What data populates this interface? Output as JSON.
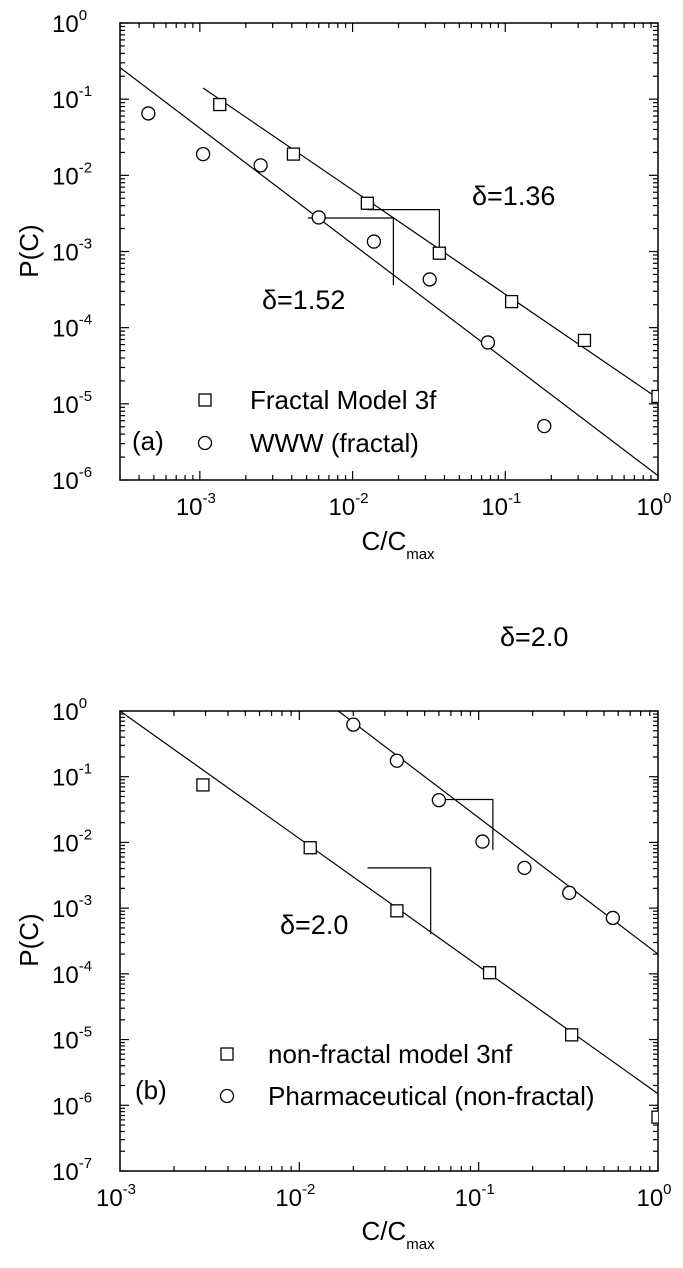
{
  "chart_data": [
    {
      "type": "scatter",
      "panel_label": "(a)",
      "xlabel": "C/C",
      "xlabel_sub": "max",
      "ylabel": "P(C)",
      "xscale": "log",
      "yscale": "log",
      "xlim": [
        0.0003,
        1
      ],
      "ylim": [
        1e-06,
        1
      ],
      "x_ticks": [
        {
          "base": "10",
          "exp": "-3",
          "value": 0.001
        },
        {
          "base": "10",
          "exp": "-2",
          "value": 0.01
        },
        {
          "base": "10",
          "exp": "-1",
          "value": 0.1
        },
        {
          "base": "10",
          "exp": "0",
          "value": 1
        }
      ],
      "y_ticks": [
        {
          "base": "10",
          "exp": "0",
          "value": 1
        },
        {
          "base": "10",
          "exp": "-1",
          "value": 0.1
        },
        {
          "base": "10",
          "exp": "-2",
          "value": 0.01
        },
        {
          "base": "10",
          "exp": "-3",
          "value": 0.001
        },
        {
          "base": "10",
          "exp": "-4",
          "value": 0.0001
        },
        {
          "base": "10",
          "exp": "-5",
          "value": 1e-05
        },
        {
          "base": "10",
          "exp": "-6",
          "value": 1e-06
        }
      ],
      "legend_position": "bottom-left",
      "series": [
        {
          "name": "Fractal Model 3f",
          "marker": "square",
          "x": [
            0.00135,
            0.0041,
            0.0125,
            0.037,
            0.11,
            0.33,
            1.0
          ],
          "y": [
            0.085,
            0.019,
            0.0043,
            0.00095,
            0.00022,
            6.8e-05,
            1.25e-05
          ]
        },
        {
          "name": "WWW (fractal)",
          "marker": "circle",
          "x": [
            0.00046,
            0.00105,
            0.0025,
            0.006,
            0.0138,
            0.032,
            0.077,
            0.18
          ],
          "y": [
            0.065,
            0.019,
            0.0135,
            0.0028,
            0.00135,
            0.00043,
            6.4e-05,
            5.1e-06
          ]
        }
      ],
      "fit_lines": [
        {
          "x": [
            0.00105,
            1.0
          ],
          "y": [
            0.14,
            1.18e-05
          ]
        },
        {
          "x": [
            0.0003,
            1.0
          ],
          "y": [
            0.26,
            1.14e-06
          ]
        }
      ],
      "annotations": [
        {
          "text": "δ=1.36",
          "x": 0.042,
          "y": 0.0045
        },
        {
          "text": "δ=1.52",
          "x": 0.0016,
          "y": 0.00026
        }
      ],
      "slope_brackets": [
        {
          "x1": 0.0125,
          "x2": 0.037,
          "y1": 0.00355,
          "y2": 0.00094
        },
        {
          "x1": 0.0051,
          "x2": 0.0185,
          "y1": 0.00275,
          "y2": 0.00036
        }
      ]
    },
    {
      "type": "scatter",
      "panel_label": "(b)",
      "xlabel": "C/C",
      "xlabel_sub": "max",
      "ylabel": "P(C)",
      "xscale": "log",
      "yscale": "log",
      "xlim": [
        0.001,
        1
      ],
      "ylim": [
        1e-07,
        1
      ],
      "x_ticks": [
        {
          "base": "10",
          "exp": "-3",
          "value": 0.001
        },
        {
          "base": "10",
          "exp": "-2",
          "value": 0.01
        },
        {
          "base": "10",
          "exp": "-1",
          "value": 0.1
        },
        {
          "base": "10",
          "exp": "0",
          "value": 1
        }
      ],
      "y_ticks": [
        {
          "base": "10",
          "exp": "0",
          "value": 1
        },
        {
          "base": "10",
          "exp": "-1",
          "value": 0.1
        },
        {
          "base": "10",
          "exp": "-2",
          "value": 0.01
        },
        {
          "base": "10",
          "exp": "-3",
          "value": 0.001
        },
        {
          "base": "10",
          "exp": "-4",
          "value": 0.0001
        },
        {
          "base": "10",
          "exp": "-5",
          "value": 1e-05
        },
        {
          "base": "10",
          "exp": "-6",
          "value": 1e-06
        },
        {
          "base": "10",
          "exp": "-7",
          "value": 1e-07
        }
      ],
      "legend_position": "bottom-left",
      "series": [
        {
          "name": "non-fractal model 3nf",
          "marker": "square",
          "x": [
            0.0029,
            0.0115,
            0.035,
            0.115,
            0.33,
            1.0
          ],
          "y": [
            0.075,
            0.0083,
            0.00091,
            0.000104,
            1.18e-05,
            6.6e-07
          ]
        },
        {
          "name": "Pharmaceutical (non-fractal)",
          "marker": "circle",
          "x": [
            0.02,
            0.035,
            0.06,
            0.105,
            0.18,
            0.32,
            0.56
          ],
          "y": [
            0.62,
            0.175,
            0.044,
            0.0103,
            0.0041,
            0.00171,
            0.00071
          ]
        }
      ],
      "fit_lines": [
        {
          "x": [
            0.001,
            1.0
          ],
          "y": [
            1.0,
            1.5e-06
          ]
        },
        {
          "x": [
            0.0165,
            1.0
          ],
          "y": [
            1.0,
            0.0002
          ]
        }
      ],
      "annotations": [
        {
          "text": "δ=2.0",
          "x": 0.12,
          "y": 0.043
        },
        {
          "text": "δ=2.0",
          "x": 0.0068,
          "y": 0.00019
        }
      ],
      "slope_brackets": [
        {
          "x1": 0.06,
          "x2": 0.12,
          "y1": 0.045,
          "y2": 0.0077
        },
        {
          "x1": 0.024,
          "x2": 0.054,
          "y1": 0.0041,
          "y2": 0.0004
        }
      ]
    }
  ]
}
